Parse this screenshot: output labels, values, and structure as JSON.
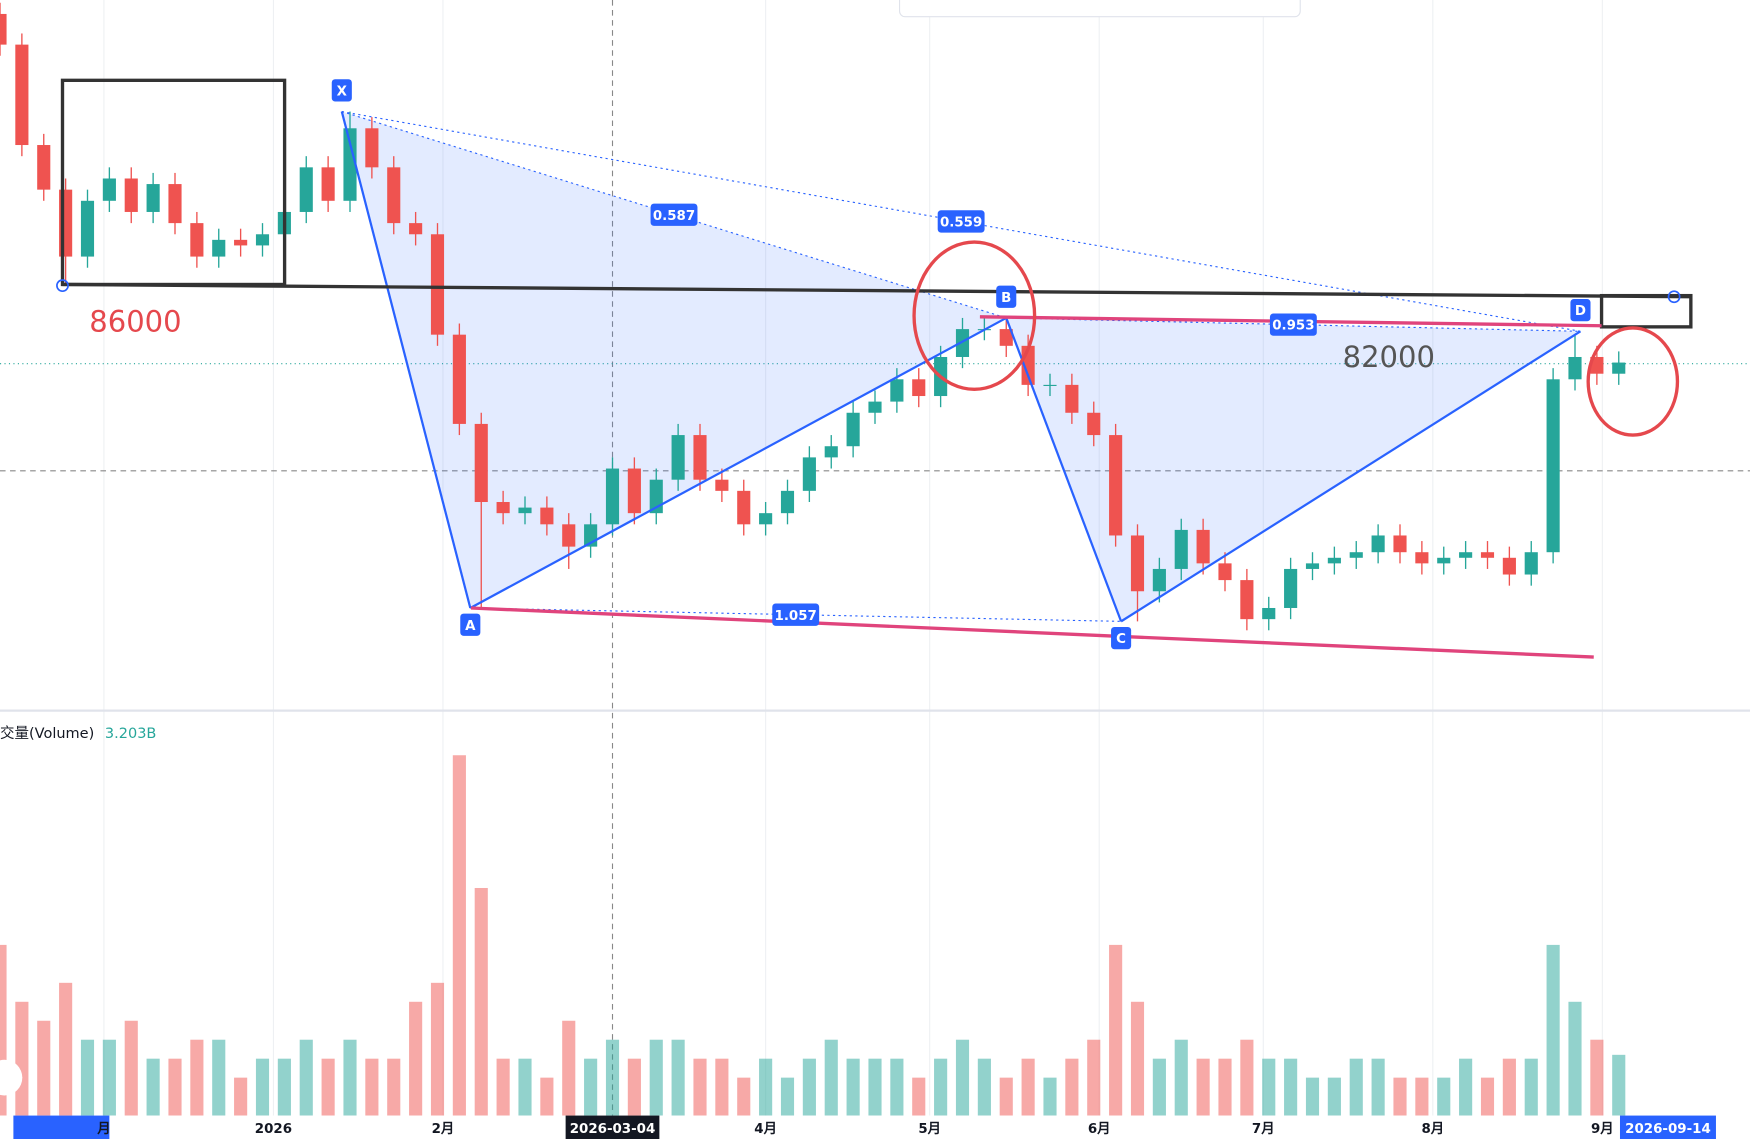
{
  "chart_data": {
    "type": "candlestick",
    "x": [
      0,
      4,
      8,
      12,
      16,
      20,
      24,
      28,
      32,
      36,
      40,
      44,
      48,
      52,
      56,
      60,
      64,
      68,
      72,
      76,
      80,
      84,
      88,
      92,
      96,
      100,
      104,
      108,
      112,
      116,
      120,
      124,
      128,
      132,
      136,
      140,
      144,
      148,
      152,
      156,
      160,
      164,
      168,
      172,
      176,
      180,
      184,
      188,
      192,
      196,
      200,
      204,
      208,
      212,
      216,
      220,
      224,
      228,
      232,
      236,
      240,
      244,
      248,
      252,
      256,
      260,
      264,
      268,
      272,
      276,
      280,
      284,
      288,
      292,
      296
    ],
    "open": [
      89800,
      89360,
      87920,
      87280,
      86320,
      87120,
      87440,
      86960,
      87360,
      86800,
      86320,
      86560,
      86480,
      86640,
      86960,
      87600,
      87120,
      88160,
      87600,
      86800,
      86640,
      85200,
      83920,
      82800,
      82640,
      82720,
      82480,
      82160,
      82480,
      83280,
      82640,
      83120,
      83760,
      83120,
      82960,
      82480,
      82640,
      82960,
      83440,
      83600,
      84080,
      84240,
      84560,
      84320,
      84880,
      85280,
      85280,
      85040,
      84480,
      84480,
      84080,
      83760,
      82320,
      81520,
      81840,
      82400,
      81920,
      81680,
      81120,
      81280,
      81840,
      81920,
      82000,
      82080,
      82320,
      82080,
      81920,
      82000,
      82080,
      82000,
      81760,
      82080,
      84560,
      84880,
      84640
    ],
    "high": [
      89960,
      89520,
      88080,
      87440,
      87280,
      87600,
      87600,
      87520,
      87520,
      86960,
      86720,
      86720,
      86800,
      87120,
      87760,
      87760,
      88400,
      88320,
      87760,
      86960,
      86800,
      85360,
      84080,
      82960,
      82880,
      82880,
      82640,
      82640,
      83440,
      83440,
      83280,
      83920,
      83920,
      83280,
      83120,
      82800,
      83120,
      83600,
      83760,
      84240,
      84400,
      84720,
      84720,
      85040,
      85440,
      85440,
      85440,
      85200,
      84640,
      84640,
      84240,
      83920,
      82480,
      82000,
      82560,
      82560,
      82080,
      81840,
      81440,
      82000,
      82080,
      82160,
      82240,
      82480,
      82480,
      82240,
      82160,
      82240,
      82240,
      82160,
      82240,
      84720,
      85200,
      85040,
      84960
    ],
    "low": [
      89200,
      87760,
      87120,
      85900,
      86160,
      86960,
      86800,
      86800,
      86640,
      86160,
      86160,
      86320,
      86320,
      86480,
      86800,
      86960,
      86960,
      87440,
      86640,
      86480,
      85040,
      83760,
      81280,
      82480,
      82480,
      82320,
      81840,
      82000,
      82320,
      82480,
      82480,
      82960,
      82960,
      82800,
      82320,
      82320,
      82480,
      82800,
      83280,
      83440,
      83920,
      84080,
      84160,
      84160,
      84720,
      85120,
      84880,
      84320,
      84320,
      83920,
      83600,
      82160,
      81088,
      81360,
      81680,
      81760,
      81520,
      80960,
      80960,
      81120,
      81680,
      81760,
      81840,
      81920,
      81920,
      81760,
      81760,
      81840,
      81840,
      81600,
      81600,
      81920,
      84400,
      84480,
      84480
    ],
    "close": [
      89360,
      87920,
      87280,
      86320,
      87120,
      87440,
      86960,
      87360,
      86800,
      86320,
      86560,
      86480,
      86640,
      86960,
      87600,
      87120,
      88160,
      87600,
      86800,
      86640,
      85200,
      83920,
      82800,
      82640,
      82720,
      82480,
      82160,
      82480,
      83280,
      82640,
      83120,
      83760,
      83120,
      82960,
      82480,
      82640,
      82960,
      83440,
      83600,
      84080,
      84240,
      84560,
      84320,
      84880,
      85280,
      85280,
      85040,
      84480,
      84480,
      84080,
      83760,
      82320,
      81520,
      81840,
      82400,
      81920,
      81680,
      81120,
      81280,
      81840,
      81920,
      82000,
      82080,
      82320,
      82080,
      81920,
      82000,
      82080,
      82000,
      81760,
      82080,
      84560,
      84880,
      84640,
      84800
    ],
    "up_color": "#26a69a",
    "down_color": "#ef5350",
    "xlim": [
      0,
      320
    ],
    "ylim": [
      79808,
      90000
    ],
    "xticks": [
      {
        "value": 19,
        "label": "月"
      },
      {
        "value": 50,
        "label": "2026"
      },
      {
        "value": 81,
        "label": "2月"
      },
      {
        "value": 140,
        "label": "4月"
      },
      {
        "value": 170,
        "label": "5月"
      },
      {
        "value": 201,
        "label": "6月"
      },
      {
        "value": 231,
        "label": "7月"
      },
      {
        "value": 262,
        "label": "8月"
      },
      {
        "value": 293,
        "label": "9月"
      }
    ],
    "crosshair": {
      "value": 112,
      "label": "2026-03-04"
    },
    "last_date": {
      "value": 305,
      "label": "2026-09-14"
    },
    "volume": {
      "name": "交量(Volume)",
      "current": {
        "value": 3.203,
        "label": "3.203B"
      },
      "ylim": [
        0,
        20
      ],
      "values": [
        9,
        6,
        5,
        7,
        4,
        4,
        5,
        3,
        3,
        4,
        4,
        2,
        3,
        3,
        4,
        3,
        4,
        3,
        3,
        6,
        7,
        19,
        12,
        3,
        3,
        2,
        5,
        3,
        4,
        3,
        4,
        4,
        3,
        3,
        2,
        3,
        2,
        3,
        4,
        3,
        3,
        3,
        2,
        3,
        4,
        3,
        2,
        3,
        2,
        3,
        4,
        9,
        6,
        3,
        4,
        3,
        3,
        4,
        3,
        3,
        2,
        2,
        3,
        3,
        2,
        2,
        2,
        3,
        2,
        3,
        3,
        9,
        6,
        4,
        3.203
      ]
    },
    "pattern": {
      "points": [
        {
          "label": "X",
          "x": 62.5,
          "price": 88400
        },
        {
          "label": "A",
          "x": 86,
          "price": 81280
        },
        {
          "label": "B",
          "x": 184,
          "price": 85440
        },
        {
          "label": "C",
          "x": 205,
          "price": 81088
        },
        {
          "label": "D",
          "x": 289,
          "price": 85248
        }
      ],
      "ratios": {
        "xb": 0.587,
        "xd": 0.559,
        "bd": 0.953,
        "ac": 1.057
      }
    },
    "annotations": [
      {
        "text": "86000",
        "color": "#e5484d"
      },
      {
        "text": "82000",
        "color": "#555555"
      }
    ]
  }
}
